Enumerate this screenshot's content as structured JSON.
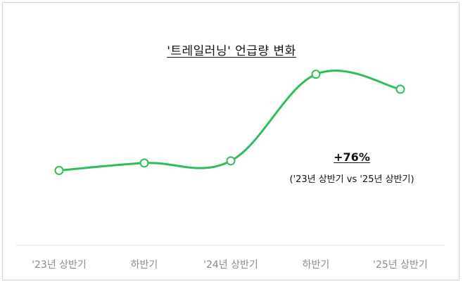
{
  "chart_data": {
    "type": "line",
    "title": "'트레일러닝' 언급량 변화",
    "categories": [
      "'23년 상반기",
      "하반기",
      "'24년 상반기",
      "하반기",
      "'25년 상반기"
    ],
    "series": [
      {
        "values": [
          100,
          107,
          109,
          190,
          176
        ]
      }
    ],
    "ylim": [
      30,
      220
    ],
    "grid": false,
    "legend": "none",
    "annotation": {
      "value": "+76%",
      "note": "('23년 상반기 vs '25년 상반기)"
    },
    "colors": {
      "line": "#2fbd5a",
      "marker_fill": "#ffffff",
      "axis": "#d9d9d9",
      "tick_text": "#8a8a8a"
    }
  }
}
